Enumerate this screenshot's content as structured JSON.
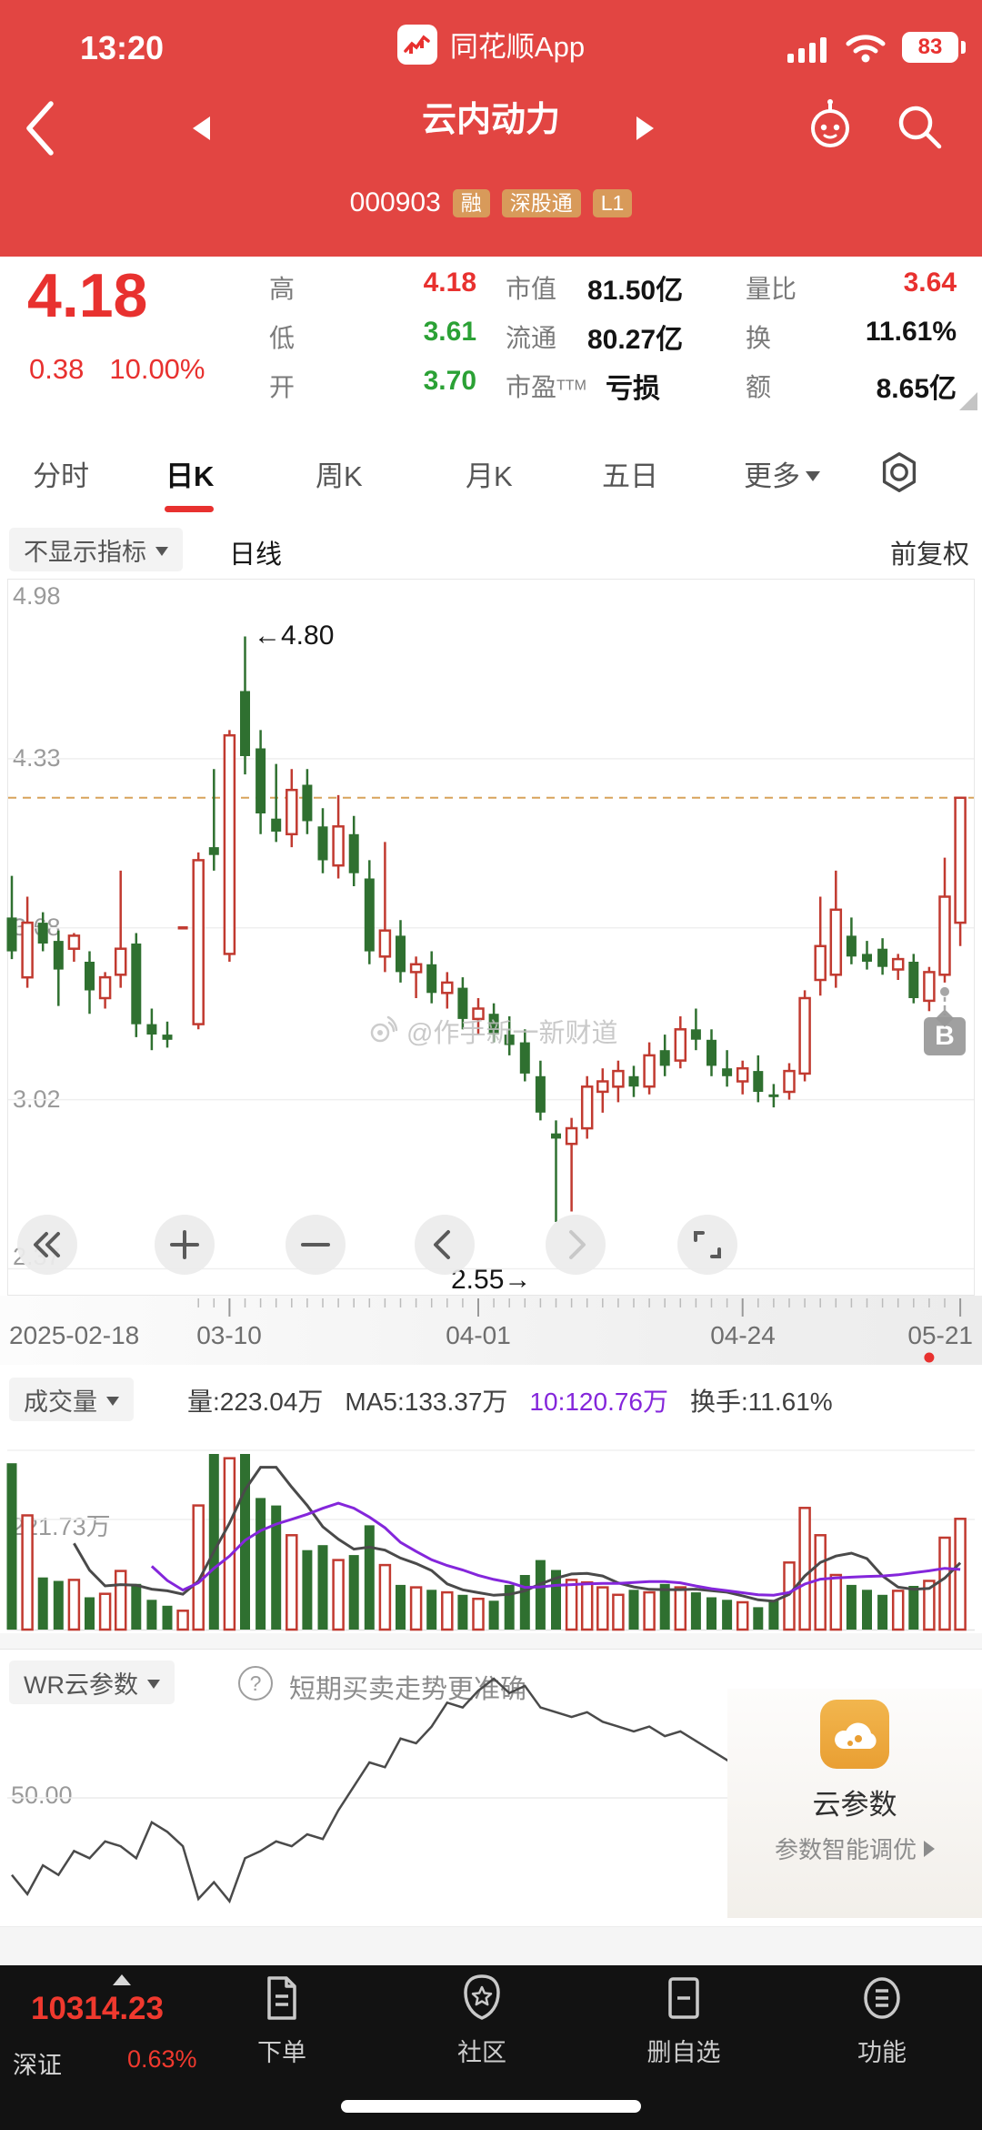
{
  "colors": {
    "header": "#E24542",
    "up": "#C13A30",
    "down": "#2F7030",
    "price_red": "#E8312F",
    "green": "#2BA135",
    "purple": "#8426DB",
    "dashed": "#D8A35B",
    "badge": "#D89A5A"
  },
  "status_bar": {
    "time": "13:20",
    "app_label": "同花顺App",
    "battery": "83"
  },
  "nav": {
    "title": "云内动力",
    "code": "000903",
    "badges": [
      "融",
      "深股通",
      "L1"
    ]
  },
  "quote": {
    "price": "4.18",
    "change": "0.38",
    "change_pct": "10.00%",
    "stats": [
      {
        "label": "高",
        "value": "4.18"
      },
      {
        "label": "低",
        "value": "3.61"
      },
      {
        "label": "开",
        "value": "3.70"
      },
      {
        "label": "市值",
        "value": "81.50亿"
      },
      {
        "label": "流通",
        "value": "80.27亿"
      },
      {
        "label": "市盈",
        "sup": "TTM",
        "value": "亏损"
      },
      {
        "label": "量比",
        "value": "3.64"
      },
      {
        "label": "换",
        "value": "11.61%"
      },
      {
        "label": "额",
        "value": "8.65亿"
      }
    ]
  },
  "tabs": {
    "items": [
      "分时",
      "日K",
      "周K",
      "月K",
      "五日"
    ],
    "more": "更多",
    "active": "日K"
  },
  "toolbar": {
    "indicator": "不显示指标",
    "period": "日线",
    "adjust": "前复权"
  },
  "chart_data": {
    "type": "candlestick",
    "title": "云内动力 000903 日K 前复权",
    "y_axis_labels": [
      "4.98",
      "4.33",
      "3.68",
      "3.02",
      "2.37"
    ],
    "y_range": [
      2.37,
      4.98
    ],
    "price_line": 4.18,
    "high_annotation": "←4.80",
    "low_annotation": "2.55→",
    "watermark": "@作手新一新财道",
    "x_ticks": [
      {
        "label": "2025-02-18",
        "index": 0
      },
      {
        "label": "03-10",
        "index": 14
      },
      {
        "label": "04-01",
        "index": 30
      },
      {
        "label": "04-24",
        "index": 47
      },
      {
        "label": "05-21",
        "index": 61
      }
    ],
    "candles": [
      [
        3.72,
        3.88,
        3.56,
        3.59
      ],
      [
        3.49,
        3.8,
        3.45,
        3.7
      ],
      [
        3.7,
        3.74,
        3.59,
        3.62
      ],
      [
        3.63,
        3.67,
        3.38,
        3.52
      ],
      [
        3.6,
        3.66,
        3.55,
        3.65
      ],
      [
        3.55,
        3.59,
        3.35,
        3.44
      ],
      [
        3.41,
        3.51,
        3.37,
        3.49
      ],
      [
        3.5,
        3.9,
        3.45,
        3.6
      ],
      [
        3.62,
        3.66,
        3.26,
        3.31
      ],
      [
        3.31,
        3.37,
        3.21,
        3.27
      ],
      [
        3.27,
        3.32,
        3.22,
        3.25
      ],
      [
        3.68,
        3.68,
        3.68,
        3.68
      ],
      [
        3.31,
        3.97,
        3.29,
        3.94
      ],
      [
        3.99,
        4.29,
        3.9,
        3.96
      ],
      [
        3.58,
        4.44,
        3.55,
        4.42
      ],
      [
        4.59,
        4.8,
        4.27,
        4.34
      ],
      [
        4.37,
        4.44,
        4.04,
        4.12
      ],
      [
        4.1,
        4.31,
        4.01,
        4.05
      ],
      [
        4.04,
        4.29,
        3.99,
        4.21
      ],
      [
        4.23,
        4.29,
        4.04,
        4.09
      ],
      [
        4.07,
        4.14,
        3.89,
        3.94
      ],
      [
        3.92,
        4.19,
        3.87,
        4.07
      ],
      [
        4.04,
        4.11,
        3.84,
        3.89
      ],
      [
        3.87,
        3.94,
        3.54,
        3.59
      ],
      [
        3.57,
        4.01,
        3.51,
        3.67
      ],
      [
        3.65,
        3.71,
        3.47,
        3.51
      ],
      [
        3.51,
        3.57,
        3.41,
        3.54
      ],
      [
        3.54,
        3.59,
        3.39,
        3.43
      ],
      [
        3.43,
        3.51,
        3.37,
        3.47
      ],
      [
        3.45,
        3.49,
        3.29,
        3.33
      ],
      [
        3.33,
        3.41,
        3.27,
        3.37
      ],
      [
        3.35,
        3.39,
        3.24,
        3.27
      ],
      [
        3.27,
        3.34,
        3.19,
        3.23
      ],
      [
        3.24,
        3.29,
        3.09,
        3.12
      ],
      [
        3.11,
        3.17,
        2.94,
        2.97
      ],
      [
        2.89,
        2.94,
        2.55,
        2.87
      ],
      [
        2.85,
        2.95,
        2.59,
        2.91
      ],
      [
        2.91,
        3.11,
        2.87,
        3.07
      ],
      [
        3.05,
        3.14,
        2.97,
        3.09
      ],
      [
        3.07,
        3.17,
        3.01,
        3.13
      ],
      [
        3.11,
        3.15,
        3.03,
        3.07
      ],
      [
        3.07,
        3.24,
        3.04,
        3.19
      ],
      [
        3.21,
        3.27,
        3.11,
        3.15
      ],
      [
        3.17,
        3.34,
        3.14,
        3.29
      ],
      [
        3.29,
        3.37,
        3.21,
        3.25
      ],
      [
        3.25,
        3.29,
        3.11,
        3.15
      ],
      [
        3.14,
        3.21,
        3.07,
        3.11
      ],
      [
        3.09,
        3.17,
        3.04,
        3.14
      ],
      [
        3.13,
        3.19,
        3.01,
        3.05
      ],
      [
        3.04,
        3.08,
        2.99,
        3.03
      ],
      [
        3.05,
        3.16,
        3.02,
        3.13
      ],
      [
        3.12,
        3.44,
        3.09,
        3.41
      ],
      [
        3.48,
        3.8,
        3.42,
        3.61
      ],
      [
        3.5,
        3.9,
        3.45,
        3.75
      ],
      [
        3.65,
        3.72,
        3.54,
        3.57
      ],
      [
        3.58,
        3.63,
        3.52,
        3.55
      ],
      [
        3.6,
        3.64,
        3.5,
        3.53
      ],
      [
        3.52,
        3.58,
        3.48,
        3.56
      ],
      [
        3.55,
        3.58,
        3.39,
        3.41
      ],
      [
        3.4,
        3.53,
        3.36,
        3.51
      ],
      [
        3.5,
        3.95,
        3.47,
        3.8
      ],
      [
        3.7,
        4.18,
        3.61,
        4.18
      ]
    ],
    "buy_marker": {
      "index": 60,
      "label": "B"
    },
    "volume": {
      "name": "成交量",
      "legend_vol": "量:223.04万",
      "legend_ma5": "MA5:133.37万",
      "legend_ma10": "10:120.76万",
      "legend_turnover": "换手:11.61%",
      "axis_label": "221.73万",
      "axis_value": 221.73,
      "values": [
        335,
        230,
        105,
        98,
        100,
        65,
        72,
        118,
        92,
        60,
        48,
        38,
        250,
        390,
        345,
        385,
        265,
        250,
        190,
        160,
        170,
        140,
        150,
        210,
        130,
        90,
        85,
        80,
        75,
        70,
        62,
        58,
        90,
        110,
        140,
        120,
        100,
        95,
        85,
        70,
        80,
        75,
        92,
        85,
        75,
        65,
        60,
        55,
        45,
        60,
        135,
        245,
        190,
        110,
        90,
        80,
        70,
        78,
        88,
        98,
        185,
        223
      ]
    },
    "wr": {
      "name": "WR云参数",
      "hint": "短期买卖走势更准确",
      "axis_label": "50.00",
      "values": [
        18,
        10,
        22,
        18,
        28,
        25,
        32,
        30,
        25,
        40,
        36,
        30,
        8,
        15,
        7,
        25,
        28,
        32,
        30,
        35,
        33,
        45,
        55,
        65,
        63,
        75,
        73,
        80,
        90,
        88,
        95,
        100,
        94,
        97,
        88,
        86,
        84,
        86,
        82,
        80,
        78,
        80,
        76,
        78,
        74,
        70,
        66,
        62,
        65,
        60,
        63,
        66,
        64,
        60,
        58,
        62,
        58,
        55,
        60,
        57,
        60,
        63
      ]
    }
  },
  "panel": {
    "title": "云参数",
    "subtitle": "参数智能调优"
  },
  "bottom_nav": {
    "index_value": "10314.23",
    "index_name": "深证",
    "index_change": "0.63%",
    "items": [
      "下单",
      "社区",
      "删自选",
      "功能"
    ]
  }
}
